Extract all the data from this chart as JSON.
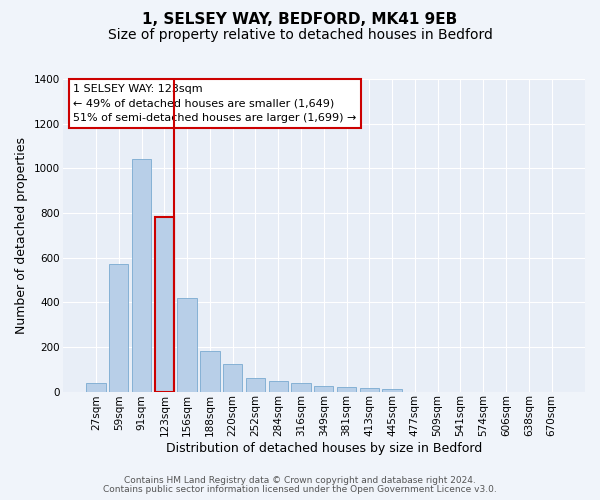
{
  "title_line1": "1, SELSEY WAY, BEDFORD, MK41 9EB",
  "title_line2": "Size of property relative to detached houses in Bedford",
  "xlabel": "Distribution of detached houses by size in Bedford",
  "ylabel": "Number of detached properties",
  "categories": [
    "27sqm",
    "59sqm",
    "91sqm",
    "123sqm",
    "156sqm",
    "188sqm",
    "220sqm",
    "252sqm",
    "284sqm",
    "316sqm",
    "349sqm",
    "381sqm",
    "413sqm",
    "445sqm",
    "477sqm",
    "509sqm",
    "541sqm",
    "574sqm",
    "606sqm",
    "638sqm",
    "670sqm"
  ],
  "values": [
    40,
    570,
    1040,
    780,
    420,
    180,
    125,
    60,
    45,
    40,
    25,
    20,
    18,
    10,
    0,
    0,
    0,
    0,
    0,
    0,
    0
  ],
  "bar_color": "#b8cfe8",
  "bar_edge_color": "#7aaad0",
  "highlight_bar_index": 3,
  "highlight_color": "#cc0000",
  "ylim": [
    0,
    1400
  ],
  "yticks": [
    0,
    200,
    400,
    600,
    800,
    1000,
    1200,
    1400
  ],
  "annotation_box_text": "1 SELSEY WAY: 123sqm\n← 49% of detached houses are smaller (1,649)\n51% of semi-detached houses are larger (1,699) →",
  "footer_line1": "Contains HM Land Registry data © Crown copyright and database right 2024.",
  "footer_line2": "Contains public sector information licensed under the Open Government Licence v3.0.",
  "bg_color": "#f0f4fa",
  "plot_bg_color": "#e8eef7",
  "grid_color": "#ffffff",
  "title_fontsize": 11,
  "subtitle_fontsize": 10,
  "axis_label_fontsize": 9,
  "tick_fontsize": 7.5,
  "annotation_fontsize": 8
}
